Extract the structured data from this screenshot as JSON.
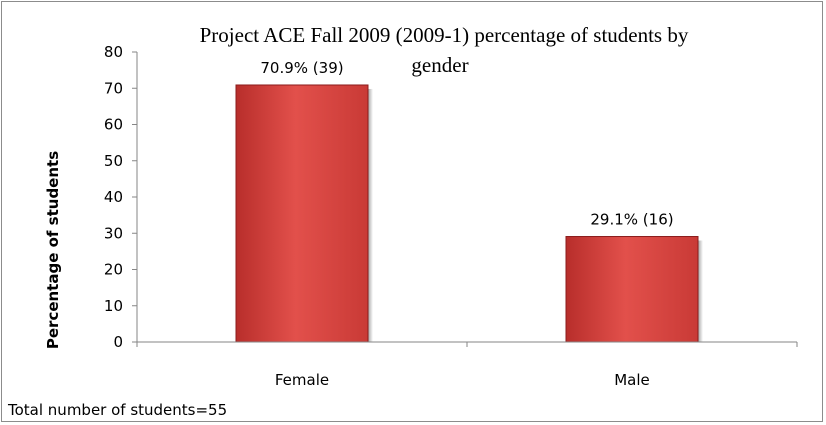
{
  "chart_data": {
    "type": "bar",
    "title": "Project ACE Fall 2009 (2009-1)  percentage of students by gender",
    "title_lines": [
      "Project ACE Fall 2009 (2009-1)  percentage of students by",
      "gender"
    ],
    "xlabel": "",
    "ylabel": "Percentage of students",
    "categories": [
      "Female",
      "Male"
    ],
    "values": [
      70.9,
      29.1
    ],
    "data_labels": [
      "70.9%  (39)",
      "29.1%  (16)"
    ],
    "ylim": [
      0,
      80
    ],
    "yticks": [
      0,
      10,
      20,
      30,
      40,
      50,
      60,
      70,
      80
    ],
    "grid": false,
    "legend": "none",
    "bar_color": "#d84a45",
    "bar_edge_color": "#8b1c1c"
  },
  "footnote": "Total number of students=55"
}
